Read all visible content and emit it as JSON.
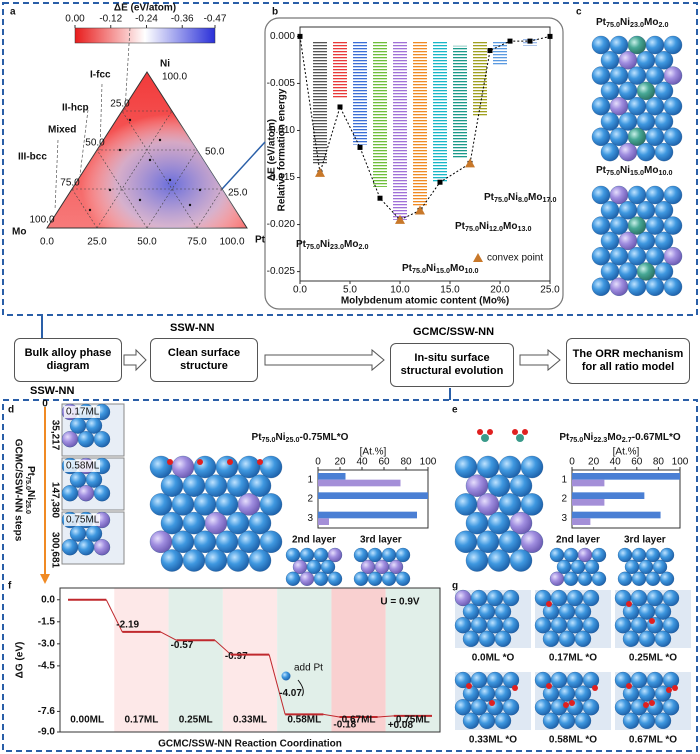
{
  "figure": {
    "panel_letters": [
      "a",
      "b",
      "c",
      "d",
      "e",
      "f",
      "g"
    ],
    "colorbar": {
      "title": "ΔE (eV/atom)",
      "ticks": [
        {
          "value": 0,
          "label": "0.00"
        },
        -0.12,
        -0.24,
        -0.36,
        -0.47
      ]
    },
    "ternary": {
      "vertices": [
        "Ni",
        "Mo",
        "Pt"
      ],
      "bottom_ticks": [
        "0.0",
        "25.0",
        "50.0",
        "75.0",
        "100.0"
      ],
      "left_ticks": [
        "25.0",
        "50.0",
        "75.0",
        "100.0"
      ],
      "right_ticks": [
        "100.0",
        "50.0",
        "25.0"
      ],
      "phases": [
        "I-fcc",
        "II-hcp",
        "Mixed",
        "III-bcc"
      ]
    },
    "panel_c": {
      "structures": [
        [
          "Pt",
          "75.0",
          "Ni",
          "23.0",
          "Mo",
          "2.0"
        ],
        [
          "Pt",
          "75.0",
          "Ni",
          "15.0",
          "Mo",
          "10.0"
        ]
      ]
    },
    "flow": {
      "boxes": [
        "Bulk alloy phase diagram",
        "Clean surface structure",
        "In-situ surface structural evolution",
        "The ORR mechanism for all ratio model"
      ],
      "methods": [
        "SSW-NN",
        "SSW-NN",
        "GCMC/SSW-NN"
      ]
    },
    "panel_d": {
      "steps_axis_label": "GCMC/SSW-NN steps",
      "composition": [
        "Pt",
        "75.0",
        "Ni",
        "25.0"
      ],
      "steps": [
        "0",
        "35,217",
        "147,380",
        "300,681"
      ],
      "coverages": [
        "0.17ML",
        "0.58ML",
        "0.75ML"
      ],
      "structure": [
        "Pt",
        "75.0",
        "Ni",
        "25.0",
        "-0.75ML*O"
      ],
      "layers": [
        "2nd layer",
        "3rd layer"
      ]
    },
    "panel_e": {
      "structure": [
        "Pt",
        "75.0",
        "Ni",
        "22.3",
        "Mo",
        "2.7",
        "-0.67ML*O"
      ],
      "layers": [
        "2nd layer",
        "3rd layer"
      ]
    },
    "panel_g": {
      "labels": [
        "0.0ML *O",
        "0.17ML *O",
        "0.25ML *O",
        "0.33ML *O",
        "0.58ML *O",
        "0.67ML *O"
      ]
    }
  },
  "chart_data": [
    {
      "type": "scatter",
      "ylabel": [
        "ΔE (eV/atom)",
        "Relative formation energy"
      ],
      "xlabel": "Molybdenum atomic content (Mo%)",
      "xlim": [
        0,
        25
      ],
      "xticks": [
        {
          "value": 0,
          "label": "0.0"
        },
        {
          "value": 5,
          "label": "5.0"
        },
        {
          "value": 10,
          "label": "10.0"
        },
        {
          "value": 15,
          "label": "15.0"
        },
        {
          "value": 20,
          "label": "20.0"
        },
        {
          "value": 25,
          "label": "25.0"
        }
      ],
      "ylim": [
        -0.026,
        0.001
      ],
      "yticks": [
        {
          "value": 0,
          "label": "0.000"
        },
        -0.005,
        {
          "value": -0.01,
          "label": "-0.010"
        },
        -0.015,
        {
          "value": -0.02,
          "label": "-0.020"
        },
        -0.025
      ],
      "ranges": {
        "x": [
          2,
          4,
          6,
          8,
          10,
          12,
          14,
          16,
          18,
          20,
          23
        ],
        "low": [
          -0.0135,
          -0.0065,
          -0.0115,
          -0.016,
          -0.0195,
          -0.018,
          -0.0155,
          -0.013,
          -0.0085,
          -0.003,
          -0.001
        ],
        "high": [
          -0.0005,
          -0.0005,
          -0.0005,
          -0.0005,
          -0.0005,
          -0.0005,
          -0.0005,
          -0.001,
          -0.0005,
          -0.0005,
          -0.0002
        ],
        "colors": [
          "#555555",
          "#e8393a",
          "#3a6fd8",
          "#6fbf3a",
          "#a070d8",
          "#f08a24",
          "#18b6c8",
          "#1a9a8a",
          "#a0a020",
          "#5a9ae0",
          "#9ab8e8"
        ]
      },
      "series": [
        {
          "x": [
            0,
            2,
            4,
            6,
            8,
            10,
            12,
            14,
            17,
            19,
            21,
            23,
            25
          ],
          "values": [
            0,
            -0.0145,
            -0.0075,
            -0.0118,
            -0.0172,
            -0.0195,
            -0.0185,
            -0.0155,
            -0.0135,
            -0.0015,
            -0.0005,
            -0.0005,
            0
          ],
          "color": "#000000"
        },
        {
          "name": "convex point",
          "x": [
            2,
            10,
            12,
            17
          ],
          "values": [
            -0.0145,
            -0.0195,
            -0.0185,
            -0.0135
          ],
          "color": "#c8782a"
        }
      ],
      "annotations": [
        [
          "Pt",
          "75.0",
          "Ni",
          "23.0",
          "Mo",
          "2.0"
        ],
        [
          "Pt",
          "75.0",
          "Ni",
          "15.0",
          "Mo",
          "10.0"
        ],
        [
          "Pt",
          "75.0",
          "Ni",
          "12.0",
          "Mo",
          "13.0"
        ],
        [
          "Pt",
          "75.0",
          "Ni",
          "8.0",
          "Mo",
          "17.0"
        ]
      ]
    },
    {
      "type": "hbar",
      "title": "[At.%]",
      "categories": [
        "1",
        "2",
        "3"
      ],
      "series": [
        {
          "color": "#4a7fd4",
          "values": [
            25,
            100,
            90
          ]
        },
        {
          "color": "#a48fd8",
          "values": [
            75,
            0,
            10
          ]
        }
      ],
      "xlim": [
        0,
        100
      ],
      "xticks": [
        0,
        20,
        40,
        60,
        80,
        100
      ]
    },
    {
      "type": "hbar",
      "title": "[At.%]",
      "categories": [
        "1",
        "2",
        "3"
      ],
      "series": [
        {
          "color": "#4a7fd4",
          "values": [
            100,
            67,
            82
          ]
        },
        {
          "color": "#a48fd8",
          "values": [
            30,
            30,
            17
          ]
        }
      ],
      "xlim": [
        0,
        100
      ],
      "xticks": [
        0,
        20,
        40,
        60,
        80,
        100
      ]
    },
    {
      "type": "waterfall",
      "categories": [
        "0.00ML",
        "0.17ML",
        "0.25ML",
        "0.33ML",
        "0.58ML",
        "0.67ML",
        "0.75ML"
      ],
      "values": [
        0,
        -2.19,
        -0.57,
        -0.97,
        -4.07,
        -0.18,
        0.08
      ],
      "value_labels": [
        null,
        "-2.19",
        "-0.57",
        "-0.97",
        "-4.07",
        "-0.18",
        "+0.08"
      ],
      "color": "#c0282d",
      "ylim": [
        -9,
        0.8
      ],
      "yticks": [
        {
          "value": 0,
          "label": "0.0"
        },
        -1.5,
        {
          "value": -3,
          "label": "-3.0"
        },
        -4.5,
        -7.6,
        {
          "value": -9,
          "label": "-9.0"
        }
      ],
      "ylabel": "ΔG (eV)",
      "xlabel": "GCMC/SSW-NN Reaction Coordination",
      "annotations": [
        "U = 0.9V",
        "add Pt"
      ]
    }
  ]
}
